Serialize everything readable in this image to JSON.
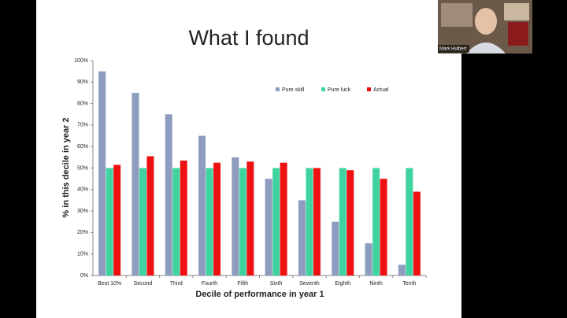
{
  "chart_data": {
    "type": "bar",
    "title": "What I found",
    "x_label": "Decile of performance in year 1",
    "y_label": "% in this decile in year 2",
    "categories": [
      "Best 10%",
      "Second",
      "Third",
      "Fourth",
      "Fifth",
      "Sixth",
      "Seventh",
      "Eighth",
      "Ninth",
      "Tenth"
    ],
    "series": [
      {
        "name": "Pure skill",
        "color": "#8e9cc0",
        "values": [
          95,
          85,
          75,
          65,
          55,
          45,
          35,
          25,
          15,
          5
        ]
      },
      {
        "name": "Pure luck",
        "color": "#3fd3a0",
        "values": [
          50,
          50,
          50,
          50,
          50,
          50,
          50,
          50,
          50,
          50
        ]
      },
      {
        "name": "Actual",
        "color": "#ee1111",
        "values": [
          51.5,
          55.5,
          53.5,
          52.5,
          53,
          52.5,
          50,
          49,
          45,
          39
        ]
      }
    ],
    "ylim": [
      0,
      100
    ],
    "yticks": [
      {
        "value": 0,
        "label": "0%"
      },
      {
        "value": 10,
        "label": "10%"
      },
      {
        "value": 20,
        "label": "20%"
      },
      {
        "value": 30,
        "label": "30%"
      },
      {
        "value": 40,
        "label": "40%"
      },
      {
        "value": 50,
        "label": "50%"
      },
      {
        "value": 60,
        "label": "60%"
      },
      {
        "value": 70,
        "label": "70%"
      },
      {
        "value": 80,
        "label": "80%"
      },
      {
        "value": 90,
        "label": "90%"
      },
      {
        "value": 100,
        "label": "100%"
      }
    ],
    "grid": false,
    "legend": "top-right"
  },
  "video_overlay": {
    "participant_name": "Mark Hulbert"
  }
}
